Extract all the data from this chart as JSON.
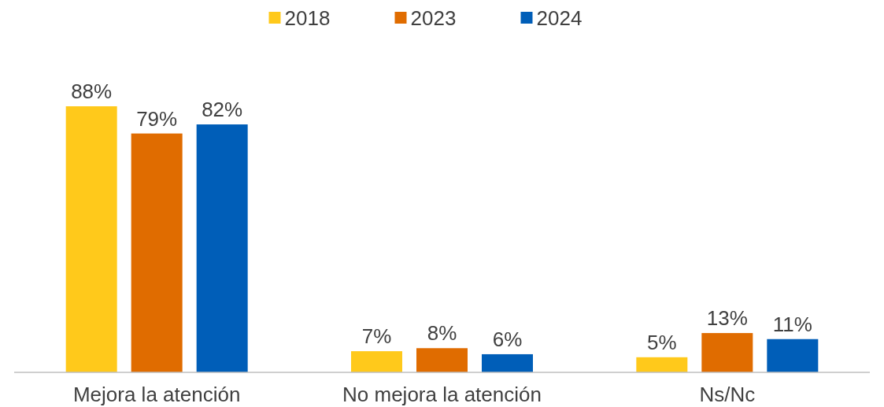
{
  "chart_data": {
    "type": "bar",
    "categories": [
      "Mejora la atención",
      "No mejora la atención",
      "Ns/Nc"
    ],
    "series": [
      {
        "name": "2018",
        "color": "#ffc91b",
        "values": [
          88,
          7,
          5
        ],
        "value_labels": [
          "88%",
          "7%",
          "5%"
        ]
      },
      {
        "name": "2023",
        "color": "#e06c00",
        "values": [
          79,
          8,
          13
        ],
        "value_labels": [
          "79%",
          "8%",
          "13%"
        ]
      },
      {
        "name": "2024",
        "color": "#005eb8",
        "values": [
          82,
          6,
          11
        ],
        "value_labels": [
          "82%",
          "6%",
          "11%"
        ]
      }
    ],
    "legend": "top"
  }
}
